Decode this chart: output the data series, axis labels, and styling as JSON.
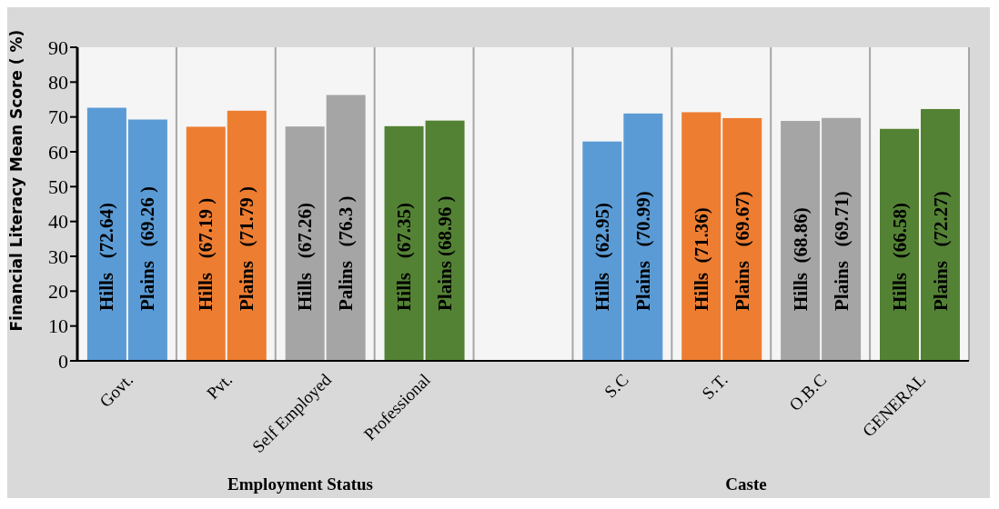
{
  "chart_data": {
    "type": "bar",
    "ylabel": "Financial Literacy Mean Score ( %)",
    "categories": [
      "Govt.",
      "Pvt.",
      "Self Employed",
      "Professional",
      null,
      "S.C",
      "S.T.",
      "O.B.C",
      "GENERAL"
    ],
    "series": [
      {
        "colors": [
          "#5b9bd5",
          "#ed7d31",
          "#a5a5a5",
          "#548235",
          null,
          "#5b9bd5",
          "#ed7d31",
          "#a5a5a5",
          "#548235"
        ],
        "values": [
          72.64,
          67.19,
          67.26,
          67.35,
          null,
          62.95,
          71.36,
          68.86,
          66.58
        ],
        "value_labels": [
          "Hills   (72.64)",
          "Hills   (67.19 )",
          "Hills   (67.26)",
          "Hills   (67.35)",
          null,
          "Hills   (62.95)",
          "Hills  (71.36)",
          "Hills  (68.86)",
          "Hills   (66.58)"
        ]
      },
      {
        "colors": [
          "#5b9bd5",
          "#ed7d31",
          "#a5a5a5",
          "#548235",
          null,
          "#5b9bd5",
          "#ed7d31",
          "#a5a5a5",
          "#548235"
        ],
        "values": [
          69.26,
          71.79,
          76.3,
          68.96,
          null,
          70.99,
          69.67,
          69.71,
          72.27
        ],
        "value_labels": [
          "Plains   (69.26 )",
          "Plains   (71.79 )",
          "Palins   (76.3 )",
          "Plains (68.96 )",
          null,
          "Plains   (70.99)",
          "Plains   (69.67)",
          "Plains   (69.71)",
          "Plains   (72.27)"
        ]
      }
    ],
    "ylim": [
      0,
      90
    ],
    "yticks": [
      0,
      10,
      20,
      30,
      40,
      50,
      60,
      70,
      80,
      90
    ],
    "grid": "x",
    "annotations": [
      "Employment Status",
      "Caste"
    ]
  }
}
